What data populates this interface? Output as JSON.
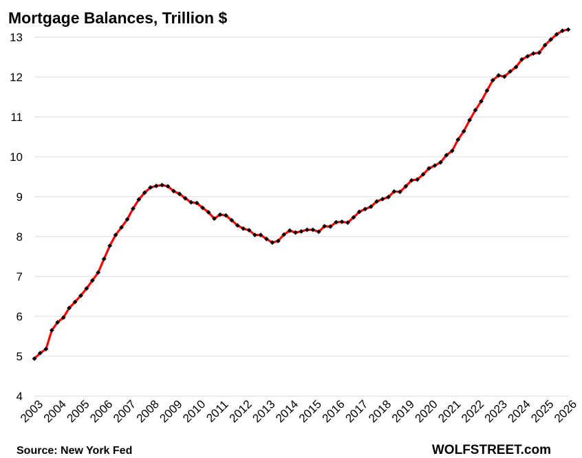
{
  "chart_data": {
    "type": "line",
    "title": "Mortgage Balances, Trillion $",
    "xlabel": "",
    "ylabel": "",
    "ylim": [
      4,
      13
    ],
    "yticks": [
      4,
      5,
      6,
      7,
      8,
      9,
      10,
      11,
      12,
      13
    ],
    "xticks": [
      "2003",
      "2004",
      "2005",
      "2006",
      "2007",
      "2008",
      "2009",
      "2010",
      "2011",
      "2012",
      "2013",
      "2014",
      "2015",
      "2016",
      "2017",
      "2018",
      "2019",
      "2020",
      "2021",
      "2022",
      "2023",
      "2024",
      "2025",
      "2026"
    ],
    "x_start": 2003.0,
    "x_step": 0.25,
    "grid": "horizontal",
    "colors": {
      "line": "#ff0000",
      "marker": "#000000",
      "grid": "#d9d9d9"
    },
    "series": [
      {
        "values": [
          4.94,
          5.08,
          5.18,
          5.65,
          5.85,
          5.97,
          6.21,
          6.36,
          6.52,
          6.7,
          6.9,
          7.1,
          7.44,
          7.77,
          8.04,
          8.23,
          8.43,
          8.7,
          8.93,
          9.1,
          9.23,
          9.27,
          9.29,
          9.26,
          9.14,
          9.07,
          8.96,
          8.86,
          8.84,
          8.72,
          8.61,
          8.45,
          8.55,
          8.53,
          8.41,
          8.28,
          8.2,
          8.16,
          8.04,
          8.04,
          7.94,
          7.85,
          7.89,
          8.05,
          8.15,
          8.1,
          8.13,
          8.17,
          8.17,
          8.12,
          8.26,
          8.25,
          8.36,
          8.37,
          8.35,
          8.48,
          8.62,
          8.69,
          8.75,
          8.88,
          8.94,
          8.99,
          9.13,
          9.12,
          9.26,
          9.41,
          9.43,
          9.56,
          9.71,
          9.78,
          9.86,
          10.04,
          10.15,
          10.43,
          10.64,
          10.92,
          11.17,
          11.39,
          11.66,
          11.92,
          12.04,
          12.01,
          12.14,
          12.25,
          12.44,
          12.52,
          12.59,
          12.61,
          12.8,
          12.94,
          13.07,
          13.16,
          13.19
        ]
      }
    ]
  },
  "footer": {
    "source": "Source: New York Fed",
    "brand": "WOLFSTREET.com"
  }
}
